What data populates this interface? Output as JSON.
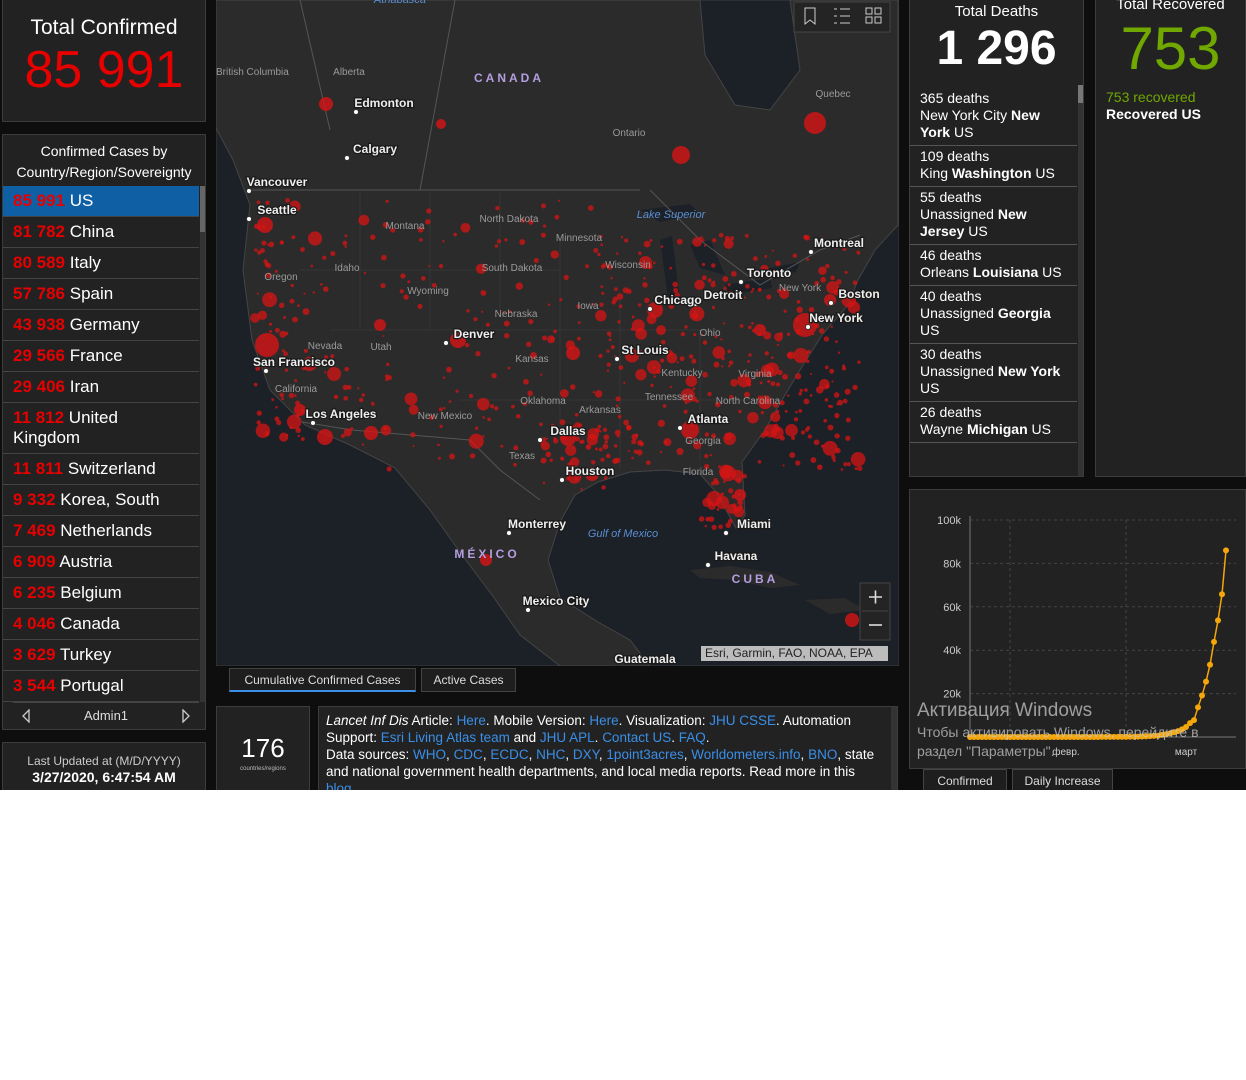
{
  "summary": {
    "title": "Total Confirmed",
    "value": "85 991"
  },
  "country_list": {
    "title": "Confirmed Cases by Country/Region/Sovereignty",
    "rows": [
      {
        "count": "85 991",
        "name": "US"
      },
      {
        "count": "81 782",
        "name": "China"
      },
      {
        "count": "80 589",
        "name": "Italy"
      },
      {
        "count": "57 786",
        "name": "Spain"
      },
      {
        "count": "43 938",
        "name": "Germany"
      },
      {
        "count": "29 566",
        "name": "France"
      },
      {
        "count": "29 406",
        "name": "Iran"
      },
      {
        "count": "11 812",
        "name": "United Kingdom"
      },
      {
        "count": "11 811",
        "name": "Switzerland"
      },
      {
        "count": "9 332",
        "name": "Korea, South"
      },
      {
        "count": "7 469",
        "name": "Netherlands"
      },
      {
        "count": "6 909",
        "name": "Austria"
      },
      {
        "count": "6 235",
        "name": "Belgium"
      },
      {
        "count": "4 046",
        "name": "Canada"
      },
      {
        "count": "3 629",
        "name": "Turkey"
      },
      {
        "count": "3 544",
        "name": "Portugal"
      }
    ],
    "footer": "Admin1"
  },
  "last_updated": {
    "label": "Last Updated at (M/D/YYYY)",
    "value": "3/27/2020, 6:47:54 AM"
  },
  "map": {
    "labels": [
      "Athabasca",
      "British Columbia",
      "Alberta",
      "CANADA",
      "Edmonton",
      "Quebec",
      "Ontario",
      "Calgary",
      "Vancouver",
      "Seattle",
      "Lake Superior",
      "North Dakota",
      "Montana",
      "Minnesota",
      "Montreal",
      "Wisconsin",
      "South Dakota",
      "Idaho",
      "Toronto",
      "Oregon",
      "New York",
      "Wyoming",
      "Boston",
      "Detroit",
      "Chicago",
      "Iowa",
      "Nebraska",
      "New York",
      "Ohio",
      "Denver",
      "Nevada",
      "Utah",
      "St Louis",
      "Kansas",
      "San Francisco",
      "Kentucky",
      "Virginia",
      "California",
      "Tennessee",
      "Oklahoma",
      "North Carolina",
      "Arkansas",
      "Los Angeles",
      "New Mexico",
      "Atlanta",
      "Dallas",
      "Georgia",
      "Texas",
      "Houston",
      "Florida",
      "Monterrey",
      "Miami",
      "Gulf of Mexico",
      "MÉXICO",
      "Havana",
      "CUBA",
      "Mexico City",
      "Guatemala"
    ],
    "attribution": "Esri, Garmin, FAO, NOAA, EPA",
    "tabs": [
      "Cumulative Confirmed Cases",
      "Active Cases"
    ]
  },
  "countries_count": {
    "value": "176",
    "label": "countries/regions"
  },
  "info": {
    "paragraphs": [
      [
        {
          "text": "Lancet Inf Dis",
          "italic": true
        },
        {
          "text": " Article: "
        },
        {
          "text": "Here",
          "link": true
        },
        {
          "text": ". Mobile Version: "
        },
        {
          "text": "Here",
          "link": true
        },
        {
          "text": ". Visualization: "
        },
        {
          "text": "JHU CSSE",
          "link": true
        },
        {
          "text": ". Automation Support: "
        },
        {
          "text": "Esri Living Atlas team",
          "link": true
        },
        {
          "text": " and "
        },
        {
          "text": "JHU APL",
          "link": true
        },
        {
          "text": ". "
        },
        {
          "text": "Contact US",
          "link": true
        },
        {
          "text": ". "
        },
        {
          "text": "FAQ",
          "link": true
        },
        {
          "text": "."
        }
      ],
      [
        {
          "text": "Data sources: "
        },
        {
          "text": "WHO",
          "link": true
        },
        {
          "text": ", "
        },
        {
          "text": "CDC",
          "link": true
        },
        {
          "text": ", "
        },
        {
          "text": "ECDC",
          "link": true
        },
        {
          "text": ", "
        },
        {
          "text": "NHC",
          "link": true
        },
        {
          "text": ", "
        },
        {
          "text": "DXY",
          "link": true
        },
        {
          "text": ", "
        },
        {
          "text": "1point3acres",
          "link": true
        },
        {
          "text": ", "
        },
        {
          "text": "Worldometers.info",
          "link": true
        },
        {
          "text": ", "
        },
        {
          "text": "BNO",
          "link": true
        },
        {
          "text": ", state and national government health departments, and local media reports.  Read more in this "
        },
        {
          "text": "blog",
          "link": true
        },
        {
          "text": "."
        }
      ]
    ]
  },
  "deaths": {
    "title": "Total Deaths",
    "value": "1 296",
    "rows": [
      {
        "count": "365 deaths",
        "admin2": "New York City",
        "state": "New York",
        "country": "US"
      },
      {
        "count": "109 deaths",
        "admin2": "King",
        "state": "Washington",
        "country": "US"
      },
      {
        "count": "55 deaths",
        "admin2": "Unassigned",
        "state": "New Jersey",
        "country": "US"
      },
      {
        "count": "46 deaths",
        "admin2": "Orleans",
        "state": "Louisiana",
        "country": "US"
      },
      {
        "count": "40 deaths",
        "admin2": "Unassigned",
        "state": "Georgia",
        "country": "US"
      },
      {
        "count": "30 deaths",
        "admin2": "Unassigned",
        "state": "New York",
        "country": "US"
      },
      {
        "count": "26 deaths",
        "admin2": "Wayne",
        "state": "Michigan",
        "country": "US"
      }
    ]
  },
  "recovered": {
    "title": "Total Recovered",
    "value": "753",
    "rows": [
      {
        "count": "753 recovered",
        "state": "Recovered",
        "country": "US"
      }
    ]
  },
  "chart_data": {
    "type": "line",
    "categories": [
      null,
      null,
      null,
      null,
      null,
      null,
      null,
      null,
      null,
      null,
      null,
      null,
      null,
      null,
      null,
      null,
      null,
      null,
      null,
      null,
      null,
      null,
      null,
      null,
      "февр.",
      null,
      null,
      null,
      null,
      null,
      null,
      null,
      null,
      null,
      null,
      null,
      null,
      null,
      null,
      null,
      null,
      null,
      null,
      null,
      null,
      null,
      null,
      null,
      null,
      null,
      null,
      null,
      null,
      null,
      "март",
      null,
      null,
      null,
      null,
      null,
      null,
      null,
      null,
      null,
      null
    ],
    "values": [
      1,
      1,
      2,
      2,
      5,
      5,
      5,
      5,
      5,
      7,
      8,
      8,
      11,
      11,
      11,
      11,
      11,
      11,
      11,
      11,
      12,
      12,
      13,
      13,
      13,
      13,
      13,
      13,
      13,
      13,
      15,
      15,
      15,
      51,
      51,
      57,
      58,
      60,
      68,
      74,
      98,
      118,
      149,
      217,
      262,
      402,
      518,
      583,
      959,
      1281,
      1663,
      2179,
      2726,
      3499,
      4632,
      6421,
      7786,
      13680,
      19101,
      25493,
      33276,
      43847,
      53740,
      65778,
      85991
    ],
    "color": "#f5a70a",
    "ylim": [
      0,
      100000
    ],
    "yticks": [
      {
        "value": 20000,
        "label": "20k"
      },
      {
        "value": 40000,
        "label": "40k"
      },
      {
        "value": 60000,
        "label": "60k"
      },
      {
        "value": 80000,
        "label": "80k"
      },
      {
        "value": 100000,
        "label": "100k"
      }
    ],
    "grid": true
  },
  "chart_tabs": [
    "Confirmed",
    "Daily Increase"
  ],
  "watermark": {
    "title": "Активация Windows",
    "text": "Чтобы активировать Windows, перейдите в раздел \"Параметры\"."
  }
}
